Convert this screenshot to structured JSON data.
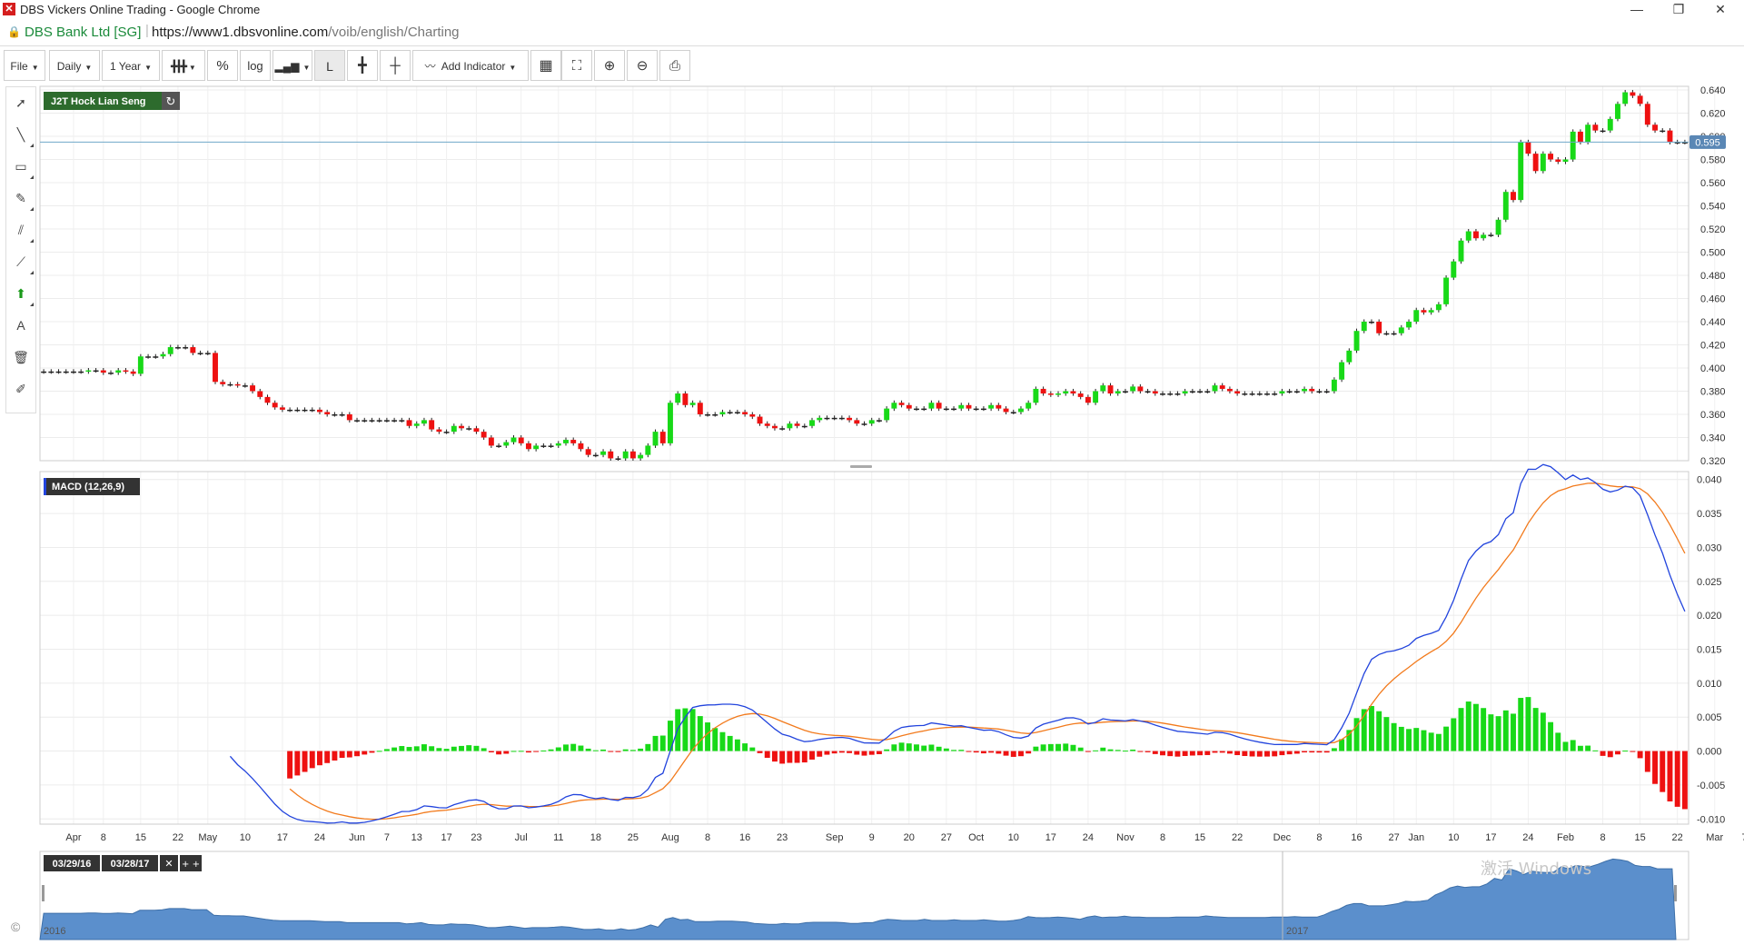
{
  "window": {
    "title": "DBS Vickers Online Trading - Google Chrome",
    "minimize": "—",
    "restore": "❐",
    "close": "✕"
  },
  "address": {
    "site": "DBS Bank Ltd [SG]",
    "url_host": "https://www1.dbsvonline.com",
    "url_path": "/voib/english/Charting"
  },
  "toolbar": {
    "file": "File",
    "interval": "Daily",
    "range": "1 Year",
    "percent": "%",
    "log": "log",
    "linear": "L",
    "add_indicator": "Add Indicator"
  },
  "left_tools": [
    "pointer-icon",
    "line-tool-icon",
    "rectangle-tool-icon",
    "pencil-tool-icon",
    "parallel-lines-icon",
    "fibonacci-tool-icon",
    "arrow-up-icon",
    "text-tool-icon",
    "trash-icon",
    "eraser-icon"
  ],
  "colors": {
    "up": "#18d918",
    "down": "#ee1111",
    "macd_line": "#2244dd",
    "signal_line": "#f27a1c",
    "navigator_fill": "#5b8fcc"
  },
  "copyright": "©",
  "chart_data": [
    {
      "type": "candlestick",
      "symbol_label": "J2T Hock Lian Seng",
      "y_ticks": [
        "0.640",
        "0.620",
        "0.600",
        "0.580",
        "0.560",
        "0.540",
        "0.520",
        "0.500",
        "0.480",
        "0.460",
        "0.440",
        "0.420",
        "0.400",
        "0.380",
        "0.360",
        "0.340",
        "0.320"
      ],
      "ylim": [
        0.32,
        0.64
      ],
      "last_price": "0.595",
      "last_price_value": 0.595,
      "closes": [
        0.397,
        0.397,
        0.397,
        0.397,
        0.397,
        0.397,
        0.398,
        0.398,
        0.396,
        0.396,
        0.398,
        0.397,
        0.395,
        0.41,
        0.41,
        0.41,
        0.412,
        0.418,
        0.418,
        0.418,
        0.413,
        0.413,
        0.413,
        0.388,
        0.386,
        0.386,
        0.385,
        0.385,
        0.38,
        0.375,
        0.37,
        0.366,
        0.364,
        0.364,
        0.364,
        0.364,
        0.364,
        0.362,
        0.36,
        0.36,
        0.36,
        0.355,
        0.355,
        0.355,
        0.355,
        0.355,
        0.355,
        0.355,
        0.355,
        0.35,
        0.352,
        0.355,
        0.347,
        0.345,
        0.345,
        0.35,
        0.348,
        0.348,
        0.345,
        0.34,
        0.333,
        0.333,
        0.336,
        0.34,
        0.335,
        0.33,
        0.333,
        0.333,
        0.333,
        0.335,
        0.338,
        0.335,
        0.33,
        0.325,
        0.325,
        0.328,
        0.322,
        0.322,
        0.328,
        0.322,
        0.325,
        0.333,
        0.345,
        0.335,
        0.37,
        0.378,
        0.368,
        0.37,
        0.36,
        0.36,
        0.36,
        0.362,
        0.362,
        0.362,
        0.36,
        0.358,
        0.352,
        0.35,
        0.348,
        0.348,
        0.352,
        0.35,
        0.35,
        0.355,
        0.357,
        0.357,
        0.357,
        0.357,
        0.355,
        0.352,
        0.352,
        0.355,
        0.355,
        0.365,
        0.37,
        0.368,
        0.365,
        0.365,
        0.365,
        0.37,
        0.365,
        0.365,
        0.365,
        0.368,
        0.365,
        0.365,
        0.365,
        0.368,
        0.365,
        0.362,
        0.362,
        0.365,
        0.37,
        0.382,
        0.378,
        0.377,
        0.378,
        0.38,
        0.378,
        0.375,
        0.37,
        0.38,
        0.385,
        0.378,
        0.38,
        0.38,
        0.384,
        0.38,
        0.38,
        0.378,
        0.378,
        0.378,
        0.378,
        0.38,
        0.38,
        0.38,
        0.38,
        0.385,
        0.382,
        0.38,
        0.378,
        0.378,
        0.378,
        0.378,
        0.378,
        0.378,
        0.38,
        0.38,
        0.38,
        0.382,
        0.38,
        0.38,
        0.38,
        0.39,
        0.405,
        0.415,
        0.432,
        0.44,
        0.44,
        0.43,
        0.43,
        0.43,
        0.435,
        0.44,
        0.45,
        0.448,
        0.45,
        0.455,
        0.478,
        0.492,
        0.51,
        0.518,
        0.512,
        0.515,
        0.515,
        0.528,
        0.552,
        0.545,
        0.595,
        0.585,
        0.57,
        0.585,
        0.58,
        0.578,
        0.58,
        0.604,
        0.595,
        0.61,
        0.605,
        0.605,
        0.615,
        0.628,
        0.638,
        0.635,
        0.628,
        0.61,
        0.605,
        0.605,
        0.595,
        0.595,
        0.595
      ],
      "x_labels": [
        {
          "label": "Apr",
          "i": 4
        },
        {
          "label": "8",
          "i": 8
        },
        {
          "label": "15",
          "i": 13
        },
        {
          "label": "22",
          "i": 18
        },
        {
          "label": "May",
          "i": 22
        },
        {
          "label": "10",
          "i": 27
        },
        {
          "label": "17",
          "i": 32
        },
        {
          "label": "24",
          "i": 37
        },
        {
          "label": "Jun",
          "i": 42
        },
        {
          "label": "7",
          "i": 46
        },
        {
          "label": "13",
          "i": 50
        },
        {
          "label": "17",
          "i": 54
        },
        {
          "label": "23",
          "i": 58
        },
        {
          "label": "Jul",
          "i": 64
        },
        {
          "label": "11",
          "i": 69
        },
        {
          "label": "18",
          "i": 74
        },
        {
          "label": "25",
          "i": 79
        },
        {
          "label": "Aug",
          "i": 84
        },
        {
          "label": "8",
          "i": 89
        },
        {
          "label": "16",
          "i": 94
        },
        {
          "label": "23",
          "i": 99
        },
        {
          "label": "Sep",
          "i": 106
        },
        {
          "label": "9",
          "i": 111
        },
        {
          "label": "20",
          "i": 116
        },
        {
          "label": "27",
          "i": 121
        },
        {
          "label": "Oct",
          "i": 125
        },
        {
          "label": "10",
          "i": 130
        },
        {
          "label": "17",
          "i": 135
        },
        {
          "label": "24",
          "i": 140
        },
        {
          "label": "Nov",
          "i": 145
        },
        {
          "label": "8",
          "i": 150
        },
        {
          "label": "15",
          "i": 155
        },
        {
          "label": "22",
          "i": 160
        },
        {
          "label": "Dec",
          "i": 166
        },
        {
          "label": "8",
          "i": 171
        },
        {
          "label": "16",
          "i": 176
        },
        {
          "label": "27",
          "i": 181
        },
        {
          "label": "Jan",
          "i": 184
        },
        {
          "label": "10",
          "i": 189
        },
        {
          "label": "17",
          "i": 194
        },
        {
          "label": "24",
          "i": 199
        },
        {
          "label": "Feb",
          "i": 204
        },
        {
          "label": "8",
          "i": 209
        },
        {
          "label": "15",
          "i": 214
        },
        {
          "label": "22",
          "i": 219
        },
        {
          "label": "Mar",
          "i": 224
        },
        {
          "label": "7",
          "i": 228
        },
        {
          "label": "13",
          "i": 233
        },
        {
          "label": "17",
          "i": 237
        },
        {
          "label": "23",
          "i": 242
        }
      ]
    },
    {
      "type": "macd",
      "label": "MACD (12,26,9)",
      "y_ticks": [
        "0.040",
        "0.035",
        "0.030",
        "0.025",
        "0.020",
        "0.015",
        "0.010",
        "0.005",
        "0.000",
        "-0.005",
        "-0.010"
      ],
      "ylim": [
        -0.0105,
        0.0405
      ]
    },
    {
      "type": "area",
      "role": "navigator",
      "from_date": "03/29/16",
      "to_date": "03/28/17",
      "year_labels": [
        "2016",
        "2017"
      ],
      "range_buttons": [
        "✕",
        "+ +"
      ]
    }
  ],
  "watermark": "激活 Windows"
}
